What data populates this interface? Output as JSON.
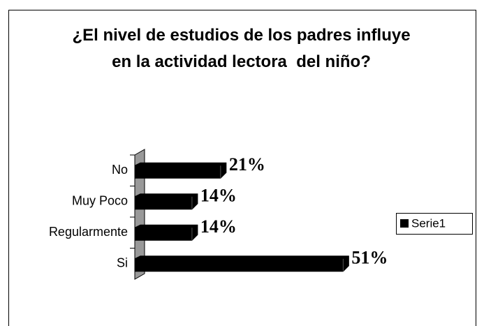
{
  "chart_data": {
    "type": "bar",
    "orientation": "horizontal",
    "title": "¿El nivel de estudios de los padres influye en la actividad lectora  del niño?",
    "categories": [
      "No",
      "Muy Poco",
      "Regularmente",
      "Si"
    ],
    "series": [
      {
        "name": "Serie1",
        "color": "#000000",
        "values": [
          21,
          14,
          14,
          51
        ],
        "value_labels": [
          "21%",
          "14%",
          "14%",
          "51%"
        ]
      }
    ],
    "legend": "right"
  }
}
